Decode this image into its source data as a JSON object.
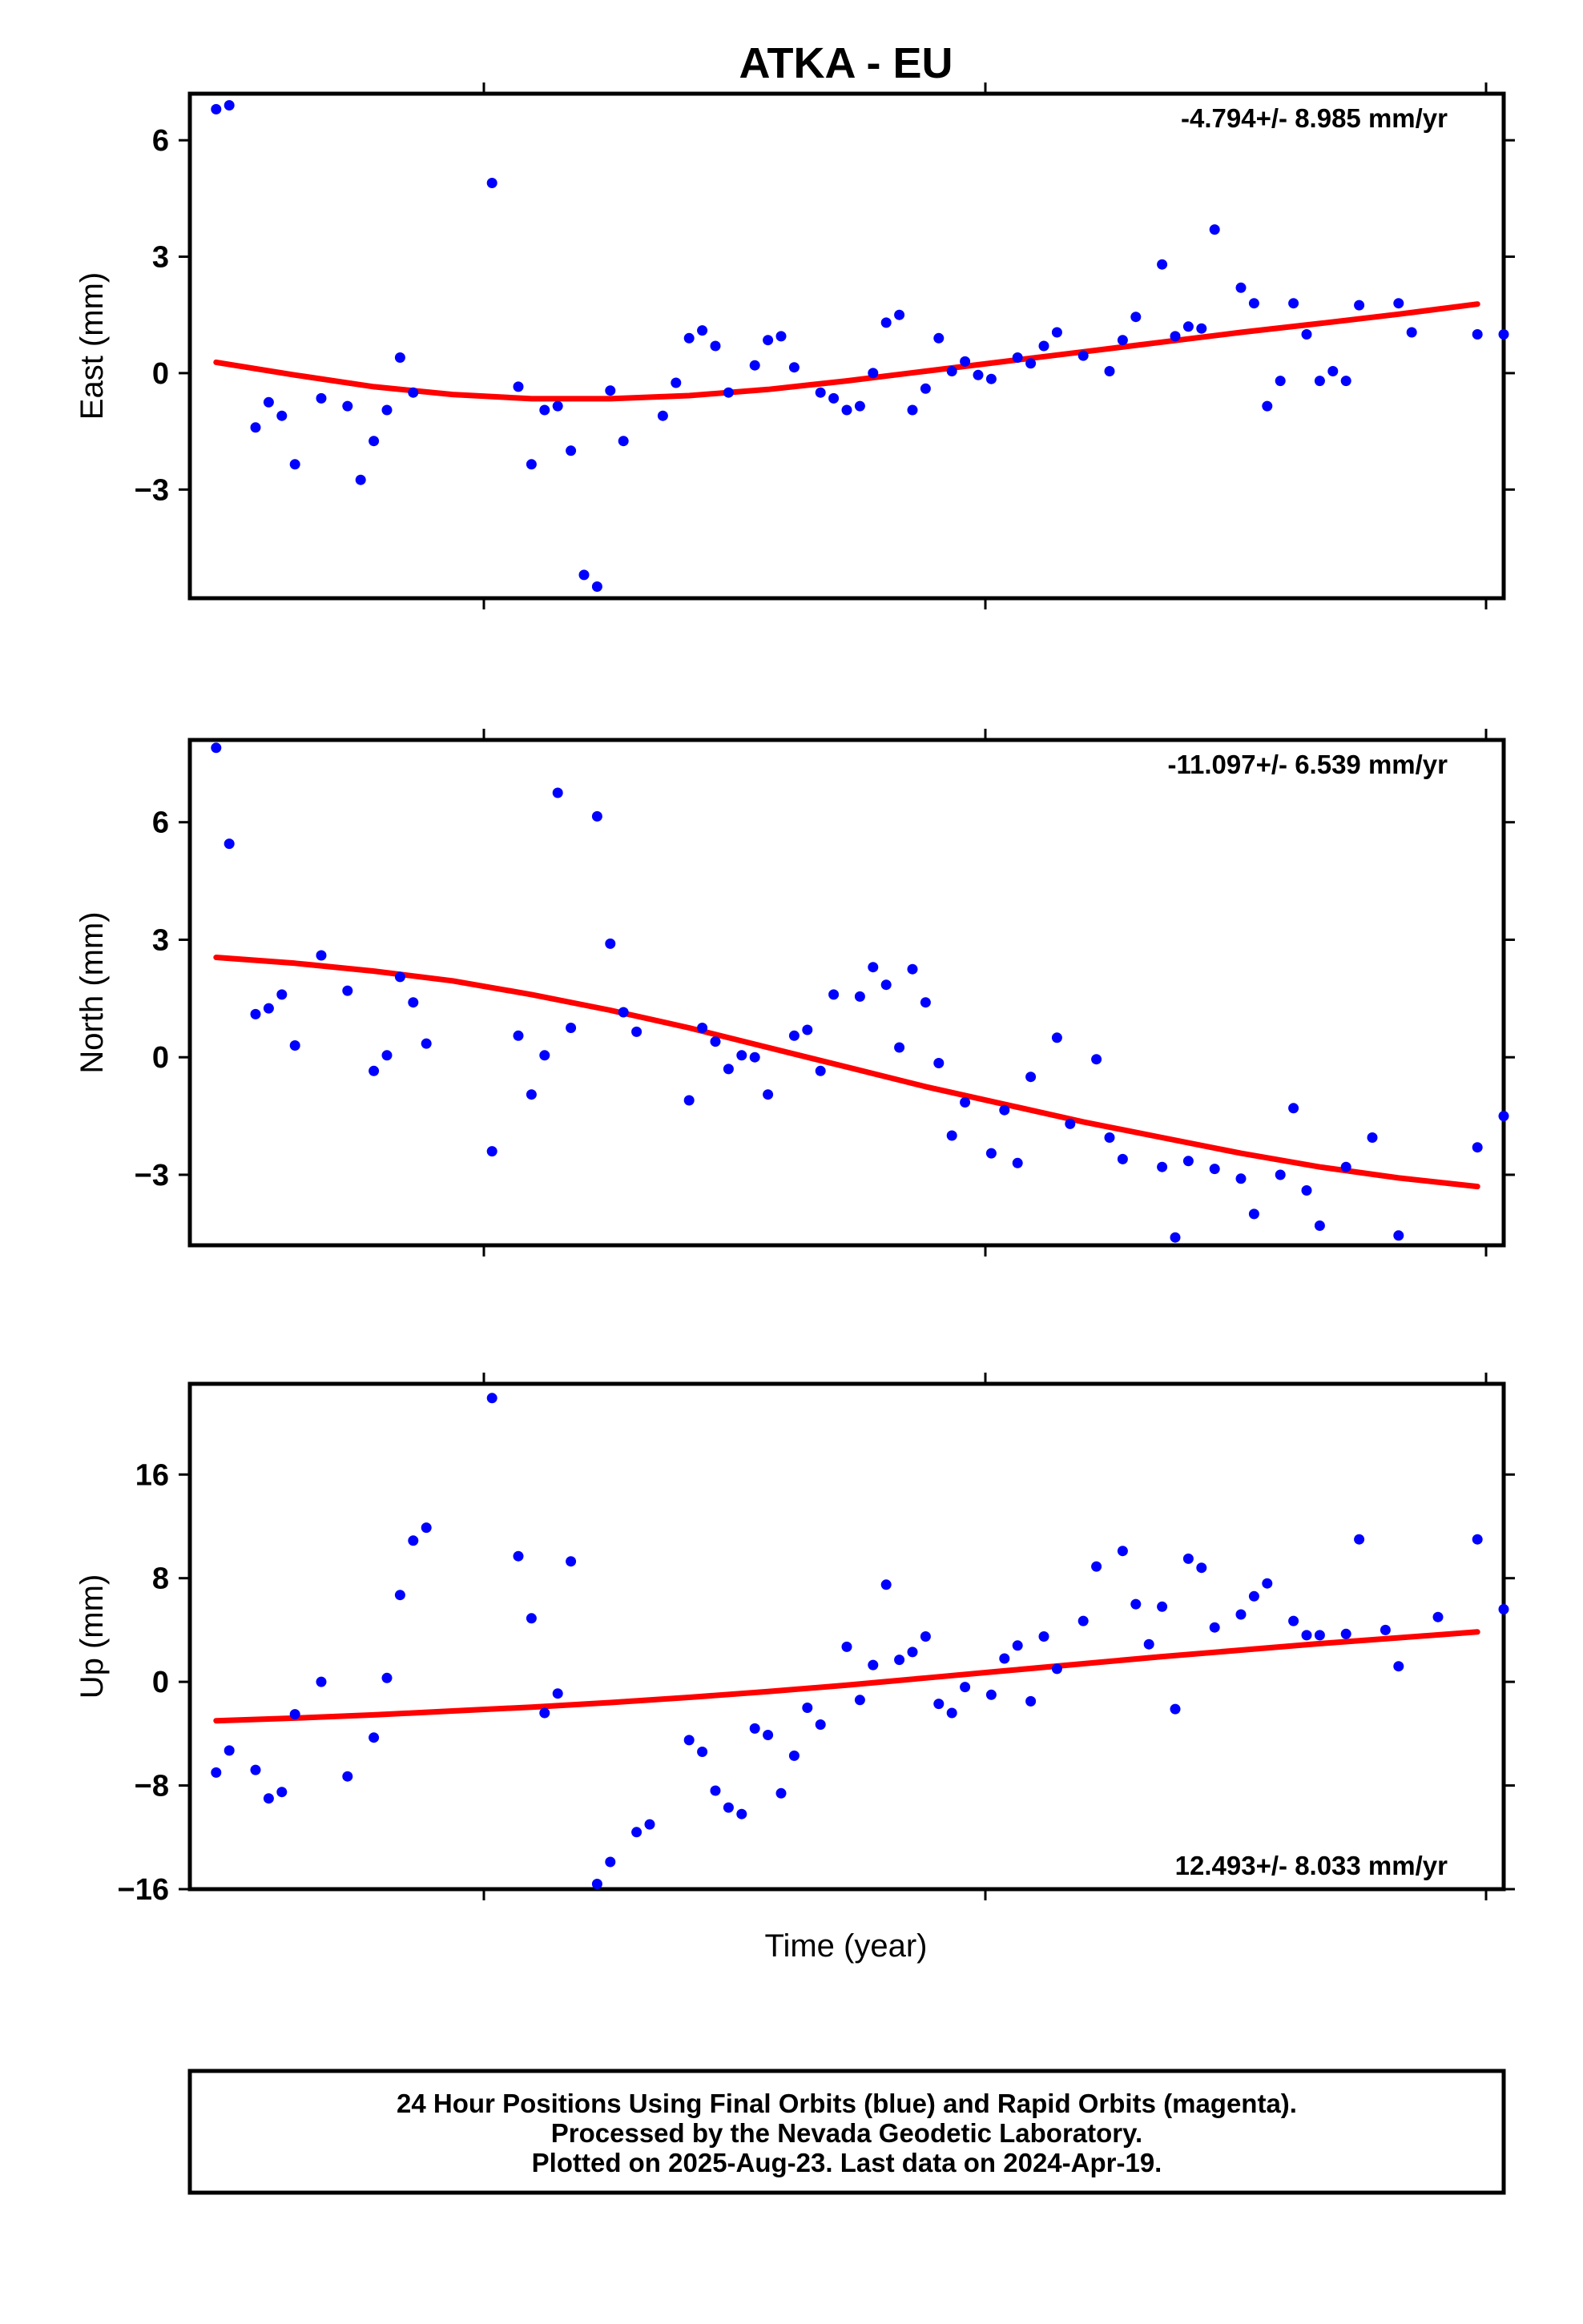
{
  "chart_data": {
    "type": "scatter",
    "title": "ATKA - EU",
    "xlabel": "Time (year)",
    "xlim": [
      0,
      100
    ],
    "colors": {
      "observations": "#0000ff",
      "fit": "#ff0000",
      "frame": "#000000"
    },
    "panels": [
      {
        "id": "east",
        "ylabel": "East (mm)",
        "ylim": [
          -5.8,
          7.2
        ],
        "yticks": [
          6,
          3,
          0,
          -3
        ],
        "ytick_labels": [
          "6",
          "3",
          "0",
          "−3"
        ],
        "rate_text": "-4.794+/- 8.985 mm/yr",
        "rate_position": "top-right",
        "fit": {
          "x": [
            2,
            8,
            14,
            20,
            26,
            32,
            38,
            44,
            50,
            56,
            62,
            68,
            74,
            80,
            86,
            92,
            98
          ],
          "y": [
            0.28,
            -0.05,
            -0.35,
            -0.55,
            -0.66,
            -0.66,
            -0.58,
            -0.42,
            -0.2,
            0.05,
            0.3,
            0.55,
            0.8,
            1.05,
            1.28,
            1.52,
            1.78
          ]
        },
        "points": {
          "x": [
            2,
            3,
            5,
            6,
            7,
            8,
            10,
            12,
            13,
            14,
            15,
            16,
            17,
            23,
            25,
            26,
            27,
            28,
            29,
            30,
            31,
            32,
            33,
            36,
            37,
            38,
            39,
            40,
            41,
            43,
            44,
            45,
            46,
            48,
            49,
            50,
            51,
            52,
            53,
            54,
            55,
            56,
            57,
            58,
            59,
            60,
            61,
            63,
            64,
            65,
            66,
            68,
            70,
            71,
            72,
            74,
            75,
            76,
            77,
            78,
            80,
            81,
            82,
            83,
            84,
            85,
            86,
            87,
            88,
            89,
            92,
            93,
            98,
            100
          ],
          "y": [
            6.8,
            6.9,
            -1.4,
            -0.75,
            -1.1,
            -2.35,
            -0.65,
            -0.85,
            -2.75,
            -1.75,
            -0.95,
            0.4,
            -0.5,
            4.9,
            -0.35,
            -2.35,
            -0.95,
            -0.85,
            -2.0,
            -5.2,
            -5.5,
            -0.45,
            -1.75,
            -1.1,
            -0.25,
            0.9,
            1.1,
            0.7,
            -0.5,
            0.2,
            0.85,
            0.95,
            0.15,
            -0.5,
            -0.65,
            -0.95,
            -0.85,
            0.0,
            1.3,
            1.5,
            -0.95,
            -0.4,
            0.9,
            0.05,
            0.3,
            -0.05,
            -0.15,
            0.4,
            0.25,
            0.7,
            1.05,
            0.45,
            0.05,
            0.85,
            1.45,
            2.8,
            0.95,
            1.2,
            1.15,
            3.7,
            2.2,
            1.8,
            -0.85,
            -0.2,
            1.8,
            1.0,
            -0.2,
            0.05,
            -0.2,
            1.75,
            1.8,
            1.05,
            1.0,
            1.0
          ]
        }
      },
      {
        "id": "north",
        "ylabel": "North (mm)",
        "ylim": [
          -4.8,
          8.1
        ],
        "yticks": [
          6,
          3,
          0,
          -3
        ],
        "ytick_labels": [
          "6",
          "3",
          "0",
          "−3"
        ],
        "rate_text": "-11.097+/- 6.539 mm/yr",
        "rate_position": "top-right",
        "fit": {
          "x": [
            2,
            8,
            14,
            20,
            26,
            32,
            38,
            44,
            50,
            56,
            62,
            68,
            74,
            80,
            86,
            92,
            98
          ],
          "y": [
            2.55,
            2.4,
            2.2,
            1.95,
            1.6,
            1.2,
            0.75,
            0.25,
            -0.25,
            -0.75,
            -1.2,
            -1.65,
            -2.05,
            -2.45,
            -2.8,
            -3.08,
            -3.3
          ]
        },
        "points": {
          "x": [
            2,
            3,
            5,
            6,
            7,
            8,
            10,
            12,
            14,
            15,
            16,
            17,
            18,
            23,
            25,
            26,
            27,
            28,
            29,
            31,
            32,
            33,
            34,
            38,
            39,
            40,
            41,
            42,
            43,
            44,
            46,
            47,
            48,
            49,
            51,
            52,
            53,
            54,
            55,
            56,
            57,
            58,
            59,
            61,
            62,
            63,
            64,
            66,
            67,
            69,
            70,
            71,
            74,
            75,
            76,
            78,
            80,
            81,
            83,
            84,
            85,
            86,
            88,
            90,
            92,
            98,
            100
          ],
          "y": [
            7.9,
            5.45,
            1.1,
            1.25,
            1.6,
            0.3,
            2.6,
            1.7,
            -0.35,
            0.05,
            2.05,
            1.4,
            0.35,
            -2.4,
            0.55,
            -0.95,
            0.05,
            6.75,
            0.75,
            6.15,
            2.9,
            1.15,
            0.65,
            -1.1,
            0.75,
            0.4,
            -0.3,
            0.05,
            0.0,
            -0.95,
            0.55,
            0.7,
            -0.35,
            1.6,
            1.55,
            2.3,
            1.85,
            0.25,
            2.25,
            1.4,
            -0.15,
            -2.0,
            -1.15,
            -2.45,
            -1.35,
            -2.7,
            -0.5,
            0.5,
            -1.7,
            -0.05,
            -2.05,
            -2.6,
            -2.8,
            -4.6,
            -2.65,
            -2.85,
            -3.1,
            -4.0,
            -3.0,
            -1.3,
            -3.4,
            -4.3,
            -2.8,
            -2.05,
            -4.55,
            -2.3,
            -1.5
          ]
        }
      },
      {
        "id": "up",
        "ylabel": "Up (mm)",
        "ylim": [
          -16,
          23
        ],
        "yticks": [
          16,
          8,
          0,
          -8,
          -16
        ],
        "ytick_labels": [
          "16",
          "8",
          "0",
          "−8",
          "−16"
        ],
        "rate_text": "12.493+/- 8.033 mm/yr",
        "rate_position": "bottom-right",
        "fit": {
          "x": [
            2,
            8,
            14,
            20,
            26,
            32,
            38,
            44,
            50,
            56,
            62,
            68,
            74,
            80,
            86,
            92,
            98
          ],
          "y": [
            -3.0,
            -2.8,
            -2.55,
            -2.25,
            -1.95,
            -1.6,
            -1.2,
            -0.75,
            -0.25,
            0.3,
            0.85,
            1.4,
            1.95,
            2.45,
            2.95,
            3.4,
            3.85
          ]
        },
        "points": {
          "x": [
            2,
            3,
            5,
            6,
            7,
            8,
            10,
            12,
            14,
            15,
            16,
            17,
            18,
            23,
            25,
            26,
            27,
            28,
            29,
            31,
            32,
            34,
            35,
            38,
            39,
            40,
            41,
            42,
            43,
            44,
            45,
            46,
            47,
            48,
            50,
            51,
            52,
            53,
            54,
            55,
            56,
            57,
            58,
            59,
            61,
            62,
            63,
            64,
            65,
            66,
            68,
            69,
            71,
            72,
            73,
            74,
            75,
            76,
            77,
            78,
            80,
            81,
            82,
            84,
            85,
            86,
            88,
            89,
            91,
            92,
            95,
            98,
            100
          ],
          "y": [
            -7.0,
            -5.3,
            -6.8,
            -9.0,
            -8.5,
            -2.5,
            0.0,
            -7.3,
            -4.3,
            0.3,
            6.7,
            10.9,
            11.9,
            21.9,
            9.7,
            4.9,
            -2.4,
            -0.9,
            9.3,
            -15.6,
            -13.9,
            -11.6,
            -11.0,
            -4.5,
            -5.4,
            -8.4,
            -9.7,
            -10.2,
            -3.6,
            -4.1,
            -8.6,
            -5.7,
            -2.0,
            -3.3,
            2.7,
            -1.4,
            1.3,
            7.5,
            1.7,
            2.3,
            3.5,
            -1.7,
            -2.4,
            -0.4,
            -1.0,
            1.8,
            2.8,
            -1.5,
            3.5,
            1.0,
            4.7,
            8.9,
            10.1,
            6.0,
            2.9,
            5.8,
            -2.1,
            9.5,
            8.8,
            4.2,
            5.2,
            6.6,
            7.6,
            4.7,
            3.6,
            3.6,
            3.7,
            11.0,
            4.0,
            1.2,
            5.0,
            11.0,
            5.6
          ]
        }
      }
    ]
  },
  "footer": {
    "line1": "24 Hour Positions Using Final Orbits (blue) and Rapid Orbits (magenta).",
    "line2": "Processed by the Nevada Geodetic Laboratory.",
    "line3": "Plotted on 2025-Aug-23. Last data on 2024-Apr-19."
  }
}
